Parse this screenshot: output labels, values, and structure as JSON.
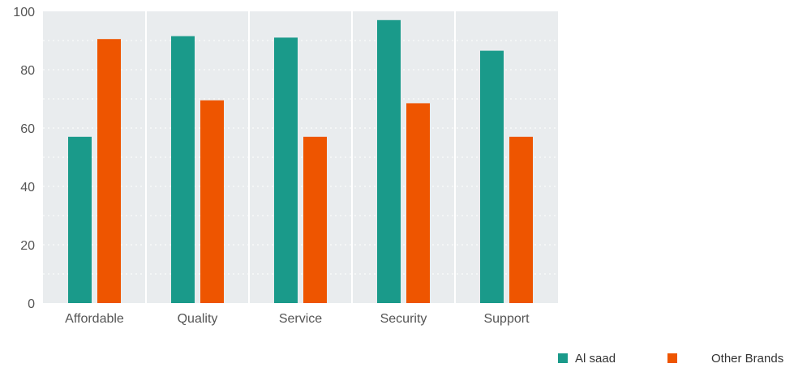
{
  "chart_data": {
    "type": "bar",
    "categories": [
      "Affordable",
      "Quality",
      "Service",
      "Security",
      "Support"
    ],
    "series": [
      {
        "name": "Al saad",
        "values": [
          57,
          91.5,
          91,
          97,
          86.5
        ],
        "color": "#1a9a8a"
      },
      {
        "name": "Other Brands",
        "values": [
          90.5,
          69.5,
          57,
          68.5,
          57
        ],
        "color": "#ee5500"
      }
    ],
    "ylim": [
      0,
      100
    ],
    "yticks": [
      0,
      20,
      40,
      60,
      80,
      100
    ],
    "grid": true,
    "legend": "bottom-right",
    "title": "",
    "xlabel": "",
    "ylabel": ""
  }
}
